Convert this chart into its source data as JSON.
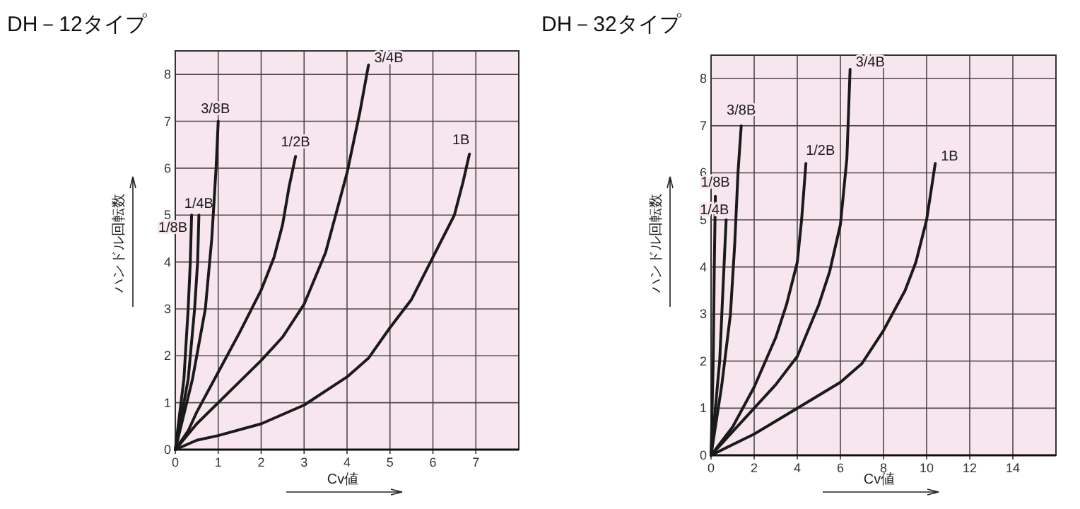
{
  "chart_data": [
    {
      "type": "line",
      "title": "DH－12タイプ",
      "xlabel": "Cv値",
      "ylabel": "ハンドル回転数",
      "xlim": [
        0,
        8
      ],
      "ylim": [
        0,
        8.5
      ],
      "xticks": [
        0,
        1,
        2,
        3,
        4,
        5,
        6,
        7
      ],
      "yticks": [
        0,
        1,
        2,
        3,
        4,
        5,
        6,
        7,
        8
      ],
      "grid": true,
      "series": [
        {
          "name": "1/8B",
          "color": "#1a1a1a",
          "x": [
            0,
            0.2,
            0.3,
            0.35,
            0.38
          ],
          "values": [
            0,
            1.5,
            3,
            4,
            5
          ]
        },
        {
          "name": "1/4B",
          "color": "#1a1a1a",
          "x": [
            0,
            0.3,
            0.45,
            0.52,
            0.55
          ],
          "values": [
            0,
            1.5,
            3,
            4,
            5
          ]
        },
        {
          "name": "3/8B",
          "color": "#1a1a1a",
          "x": [
            0,
            0.4,
            0.7,
            0.85,
            0.95,
            1.0
          ],
          "values": [
            0,
            1.5,
            3,
            4.5,
            6,
            7
          ]
        },
        {
          "name": "1/2B",
          "color": "#1a1a1a",
          "x": [
            0,
            0.3,
            0.5,
            1,
            1.5,
            2,
            2.3,
            2.5,
            2.65,
            2.8
          ],
          "values": [
            0,
            0.4,
            0.8,
            1.65,
            2.5,
            3.4,
            4.1,
            4.8,
            5.6,
            6.25
          ]
        },
        {
          "name": "3/4B",
          "color": "#1a1a1a",
          "x": [
            0,
            0.5,
            1,
            2,
            2.5,
            3,
            3.5,
            4,
            4.3,
            4.5
          ],
          "values": [
            0,
            0.55,
            1.0,
            1.9,
            2.4,
            3.1,
            4.2,
            5.9,
            7.2,
            8.2
          ]
        },
        {
          "name": "1B",
          "color": "#1a1a1a",
          "x": [
            0,
            0.5,
            1,
            2,
            3,
            4,
            4.5,
            5,
            5.5,
            6,
            6.5,
            6.7,
            6.85
          ],
          "values": [
            0,
            0.2,
            0.3,
            0.55,
            0.95,
            1.55,
            1.95,
            2.6,
            3.2,
            4.1,
            5.0,
            5.7,
            6.3
          ]
        }
      ]
    },
    {
      "type": "line",
      "title": "DH－32タイプ",
      "xlabel": "Cv値",
      "ylabel": "ハンドル回転数",
      "xlim": [
        0,
        16
      ],
      "ylim": [
        0,
        8.5
      ],
      "xticks": [
        0,
        2,
        4,
        6,
        8,
        10,
        12,
        14
      ],
      "yticks": [
        0,
        1,
        2,
        3,
        4,
        5,
        6,
        7,
        8
      ],
      "grid": true,
      "series": [
        {
          "name": "1/8B",
          "color": "#1a1a1a",
          "x": [
            0,
            0.1,
            0.15,
            0.2
          ],
          "values": [
            0,
            2,
            4,
            5.5
          ]
        },
        {
          "name": "1/4B",
          "color": "#1a1a1a",
          "x": [
            0,
            0.4,
            0.6,
            0.7
          ],
          "values": [
            0,
            2,
            4,
            5
          ]
        },
        {
          "name": "3/8B",
          "color": "#1a1a1a",
          "x": [
            0,
            0.5,
            0.9,
            1.1,
            1.25,
            1.4
          ],
          "values": [
            0,
            1.5,
            3,
            4.5,
            6,
            7
          ]
        },
        {
          "name": "1/2B",
          "color": "#1a1a1a",
          "x": [
            0,
            1,
            2,
            3,
            3.5,
            4,
            4.2,
            4.4
          ],
          "values": [
            0,
            0.6,
            1.45,
            2.5,
            3.2,
            4.1,
            5.0,
            6.2
          ]
        },
        {
          "name": "3/4B",
          "color": "#1a1a1a",
          "x": [
            0,
            1,
            2,
            3,
            4,
            5,
            5.5,
            6,
            6.3,
            6.45
          ],
          "values": [
            0,
            0.5,
            1.0,
            1.5,
            2.1,
            3.2,
            3.9,
            4.9,
            6.3,
            8.2
          ]
        },
        {
          "name": "1B",
          "color": "#1a1a1a",
          "x": [
            0,
            2,
            4,
            6,
            7,
            8,
            9,
            9.5,
            10,
            10.4
          ],
          "values": [
            0,
            0.45,
            1.0,
            1.55,
            1.95,
            2.65,
            3.5,
            4.1,
            5.0,
            6.2
          ]
        }
      ]
    }
  ]
}
